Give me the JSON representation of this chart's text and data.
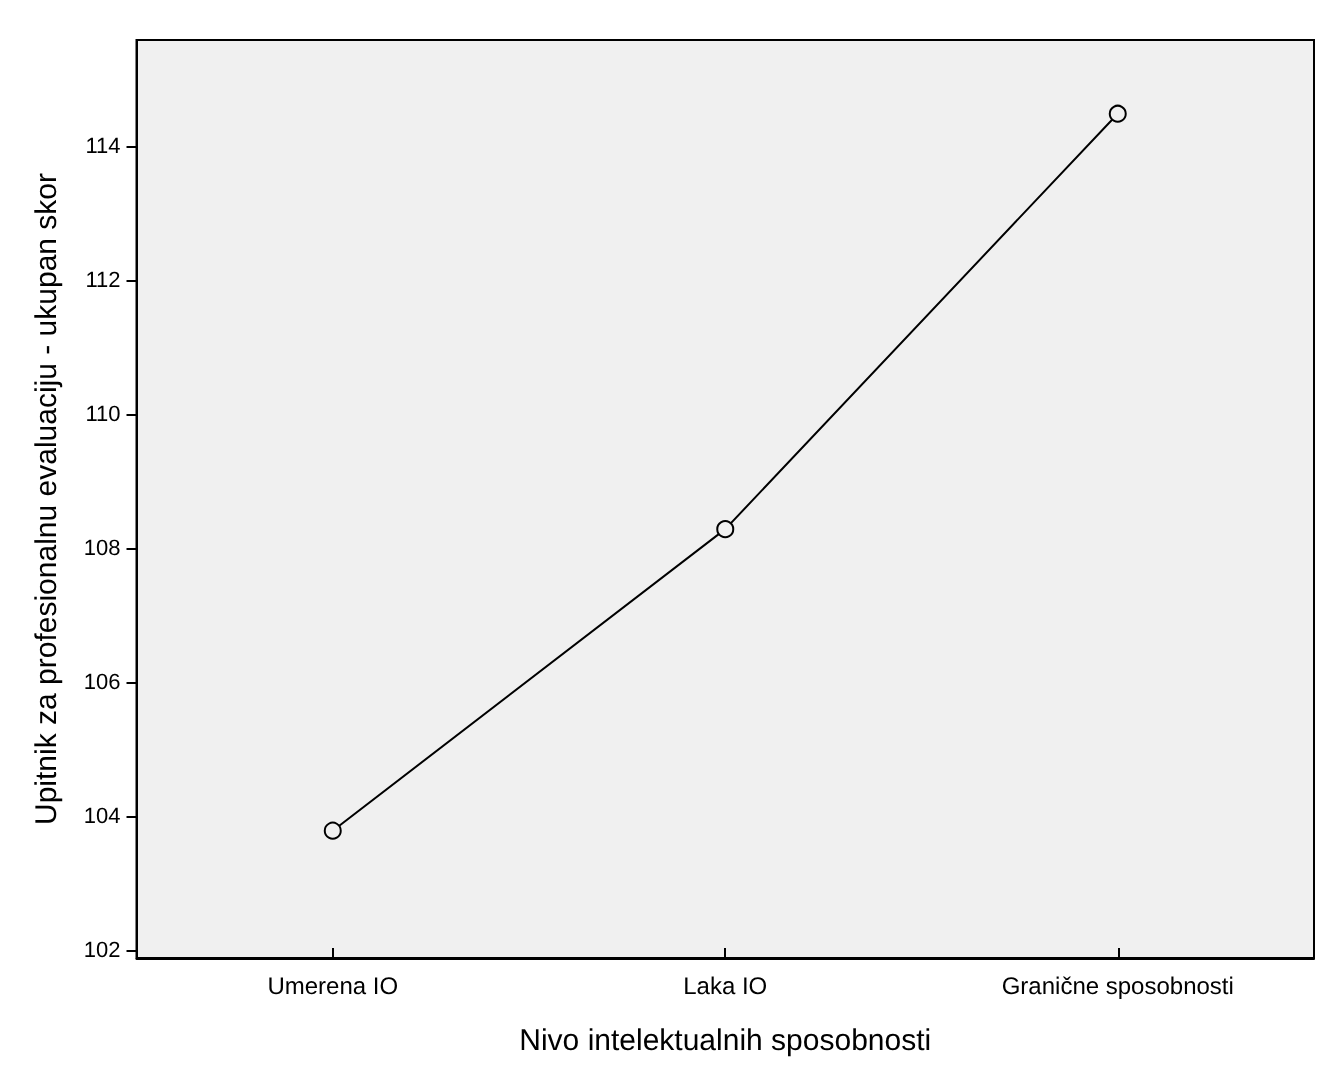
{
  "chart_data": {
    "type": "line",
    "xlabel": "Nivo intelektualnih sposobnosti",
    "ylabel": "Upitnik za profesionalnu evaluaciju - ukupan skor",
    "categories": [
      "Umerena IO",
      "Laka IO",
      "Granične sposobnosti"
    ],
    "series": [
      {
        "color": "#000000",
        "values": [
          103.8,
          108.3,
          114.5
        ]
      }
    ],
    "ylim": [
      101.9,
      115.6
    ],
    "yticks": [
      102,
      104,
      106,
      108,
      110,
      112,
      114
    ],
    "grid": false,
    "marker": "circle",
    "line_style": "solid"
  }
}
